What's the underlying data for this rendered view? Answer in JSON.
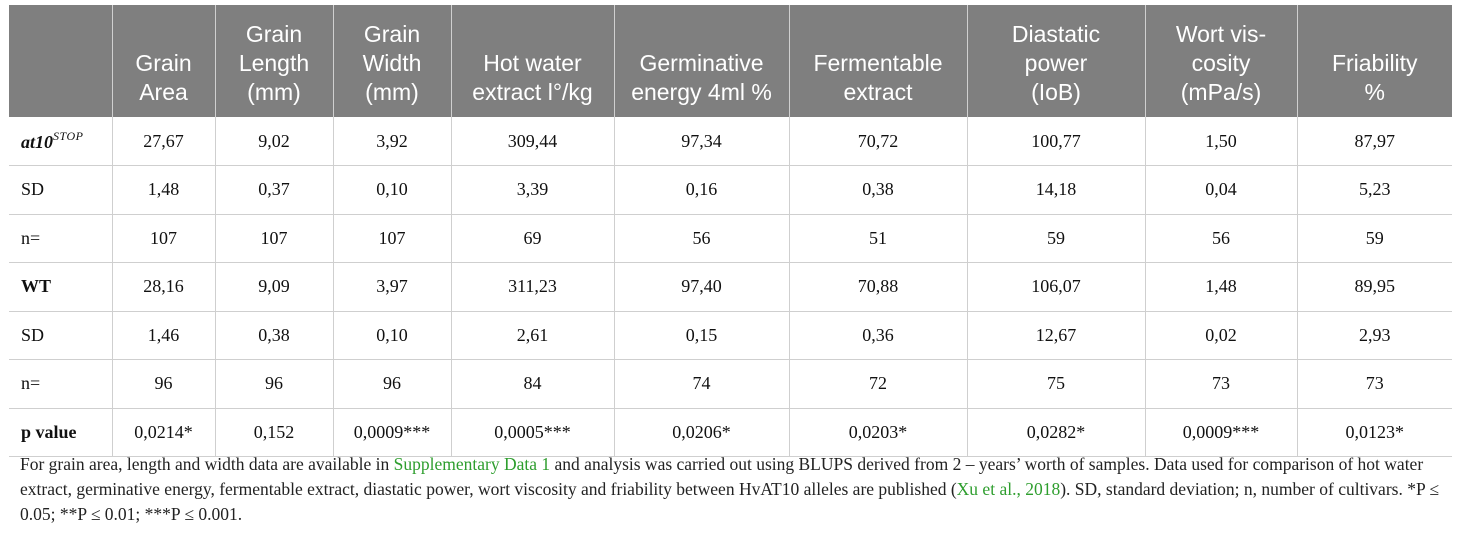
{
  "table": {
    "headers": [
      "",
      "Grain Area",
      "Grain Length (mm)",
      "Grain Width (mm)",
      "Hot water extract l°/kg",
      "Germinative energy 4ml %",
      "Fermentable extract",
      "Diastatic power (IoB)",
      "Wort vis-cosity (mPa/s)",
      "Friability %"
    ],
    "rows": [
      {
        "label": "at10",
        "label_sup": "STOP",
        "cells": [
          "27,67",
          "9,02",
          "3,92",
          "309,44",
          "97,34",
          "70,72",
          "100,77",
          "1,50",
          "87,97"
        ]
      },
      {
        "label": "SD",
        "cells": [
          "1,48",
          "0,37",
          "0,10",
          "3,39",
          "0,16",
          "0,38",
          "14,18",
          "0,04",
          "5,23"
        ]
      },
      {
        "label": "n=",
        "cells": [
          "107",
          "107",
          "107",
          "69",
          "56",
          "51",
          "59",
          "56",
          "59"
        ]
      },
      {
        "label": "WT",
        "cells": [
          "28,16",
          "9,09",
          "3,97",
          "311,23",
          "97,40",
          "70,88",
          "106,07",
          "1,48",
          "89,95"
        ]
      },
      {
        "label": "SD",
        "cells": [
          "1,46",
          "0,38",
          "0,10",
          "2,61",
          "0,15",
          "0,36",
          "12,67",
          "0,02",
          "2,93"
        ]
      },
      {
        "label": "n=",
        "cells": [
          "96",
          "96",
          "96",
          "84",
          "74",
          "72",
          "75",
          "73",
          "73"
        ]
      },
      {
        "label": "p value",
        "cells": [
          "0,0214*",
          "0,152",
          "0,0009***",
          "0,0005***",
          "0,0206*",
          "0,0203*",
          "0,0282*",
          "0,0009***",
          "0,0123*"
        ]
      }
    ]
  },
  "footnote": {
    "part1": "For grain area, length and width data are available in ",
    "link1": "Supplementary Data 1",
    "part2": " and analysis was carried out using BLUPS derived from 2 – years’ worth of samples. Data used for comparison of hot water extract, germinative energy, fermentable extract, diastatic power, wort viscosity and friability between HvAT10 alleles are published (",
    "link2": "Xu et al., 2018",
    "part3": "). SD, standard deviation; n, number of cultivars. *P ≤ 0.05; **P ≤ 0.01; ***P ≤ 0.001."
  },
  "colors": {
    "header_bg": "#7f7f7f",
    "header_text": "#ffffff",
    "link": "#2e9e2e",
    "grid": "#cfcfcf"
  }
}
